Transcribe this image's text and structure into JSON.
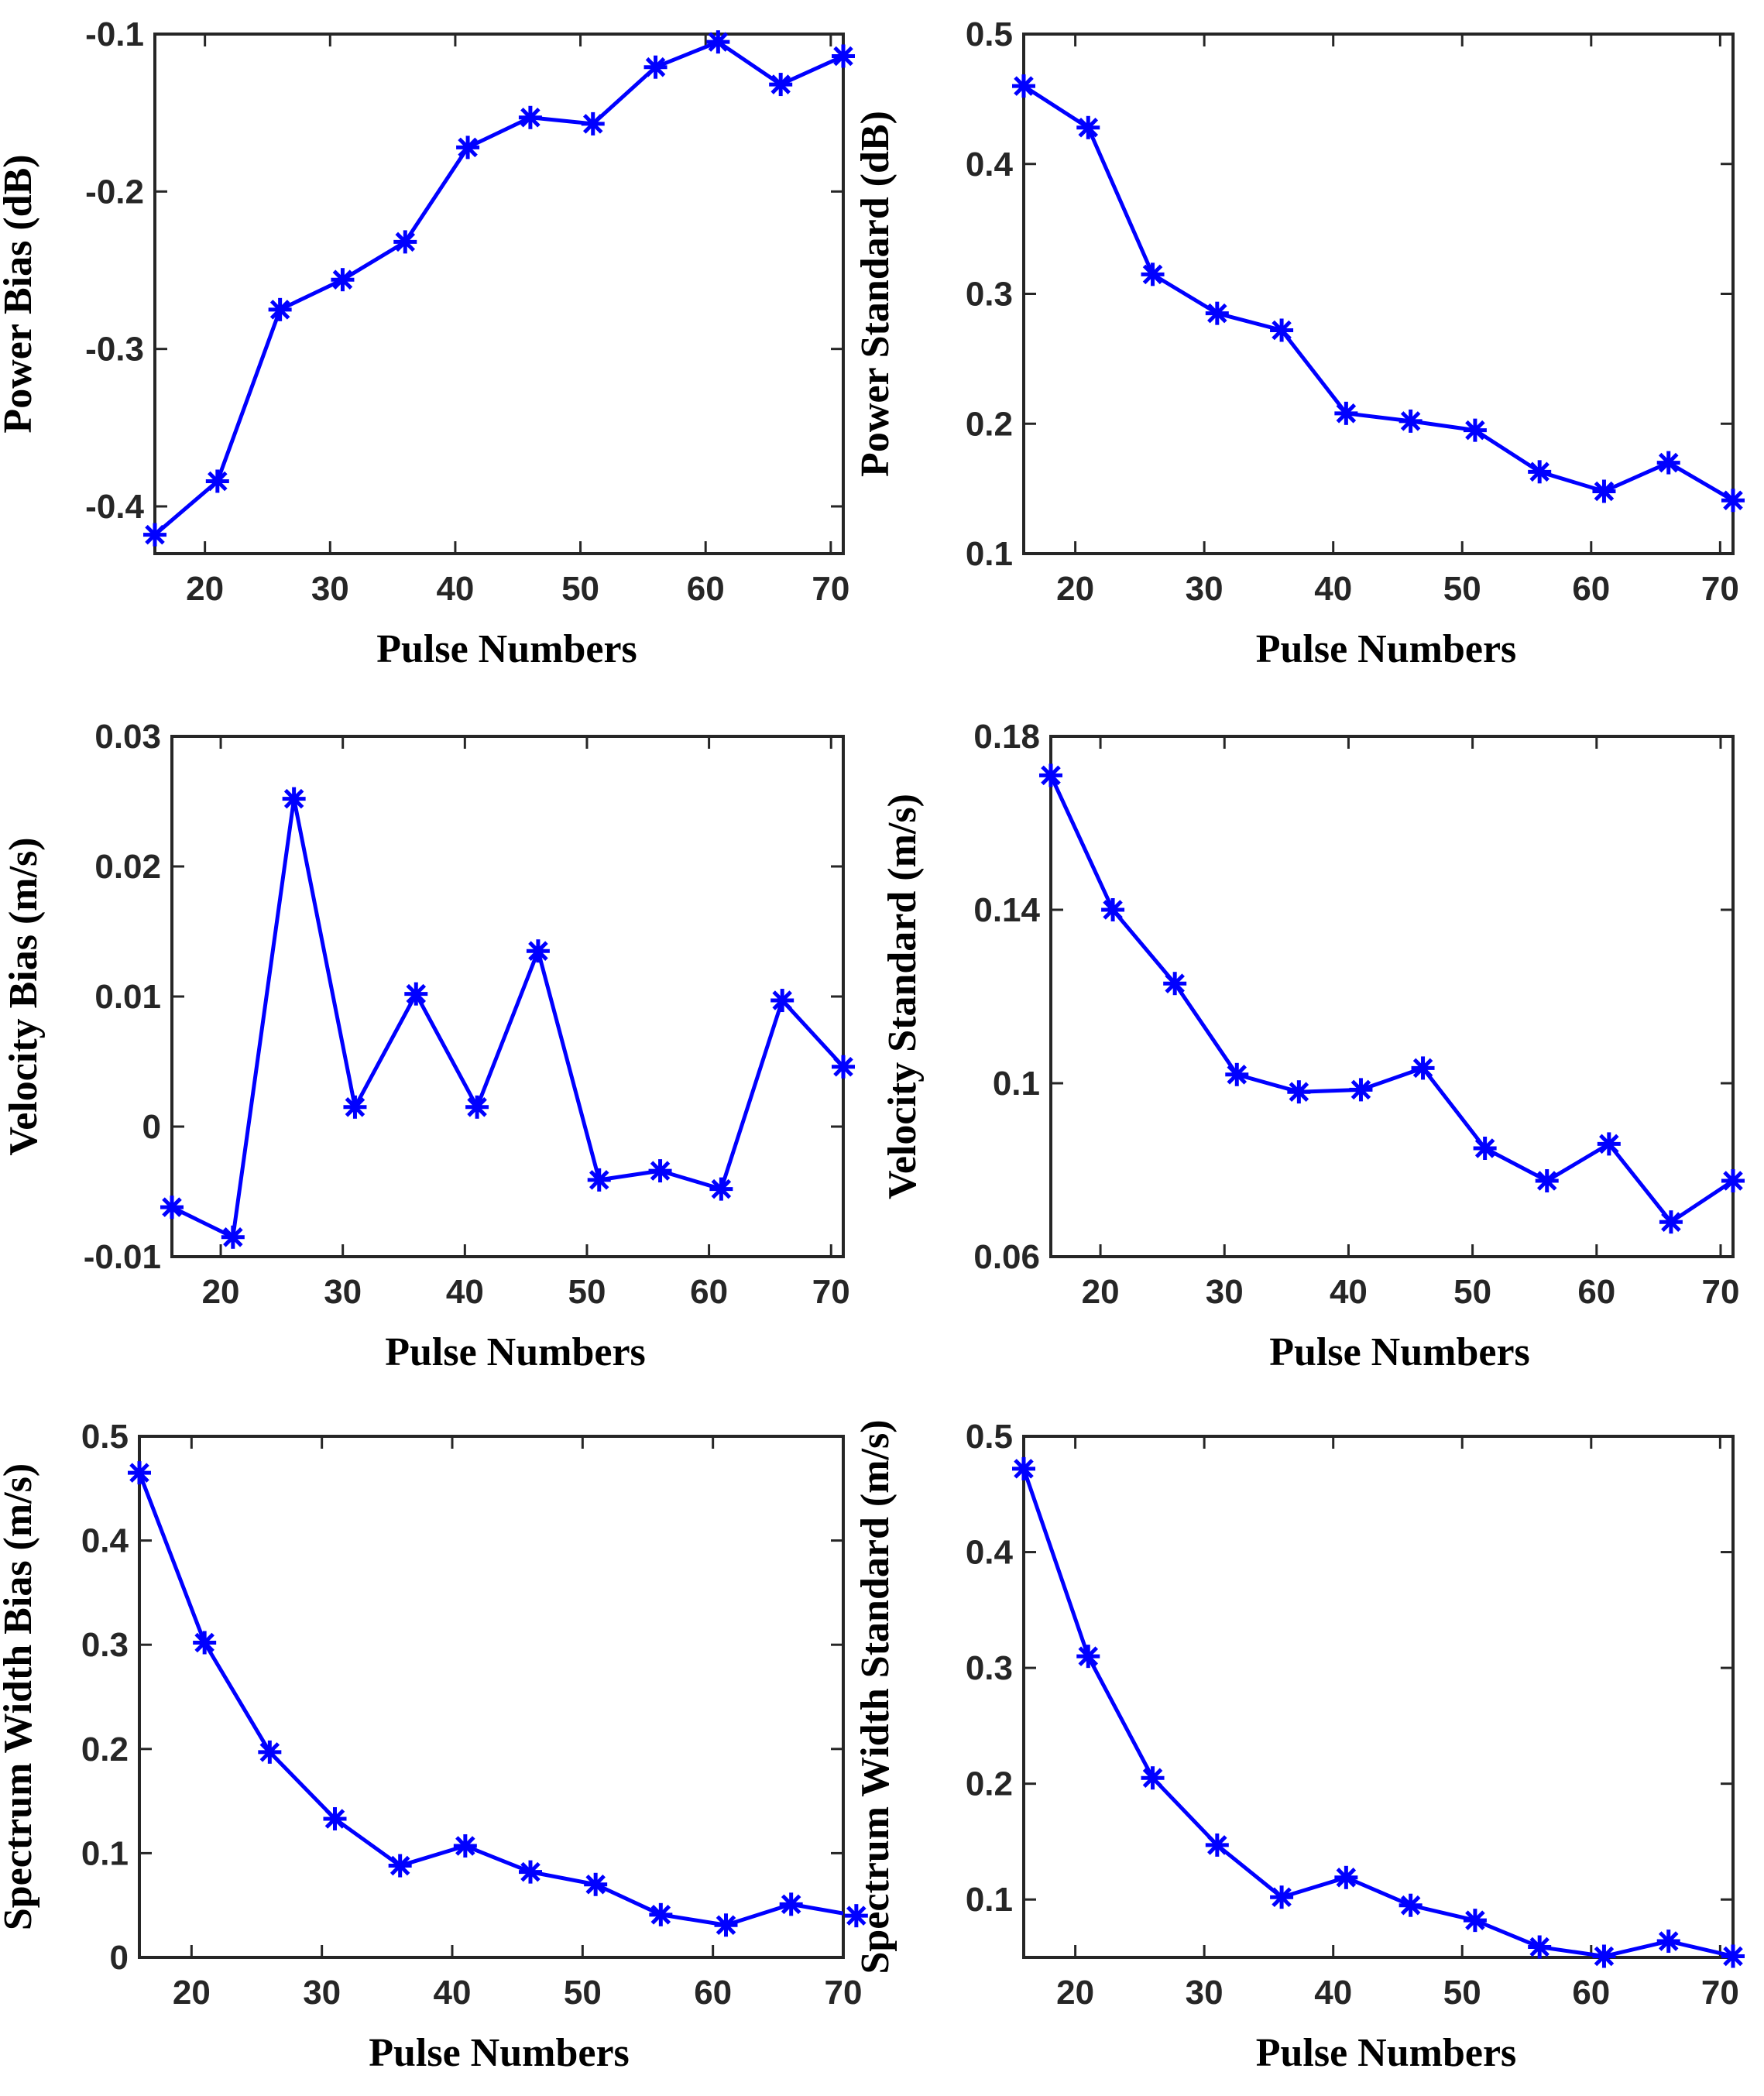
{
  "colors": {
    "series": "#0000FF",
    "axis": "#262626",
    "background": "#FFFFFF"
  },
  "marker_icon": "asterisk-icon",
  "chart_data": [
    {
      "type": "line",
      "title": "",
      "xlabel": "Pulse Numbers",
      "ylabel": "Power Bias (dB)",
      "x": [
        16,
        21,
        26,
        31,
        36,
        41,
        46,
        51,
        56,
        61,
        66,
        71
      ],
      "series": [
        {
          "name": "Power Bias",
          "values": [
            -0.418,
            -0.384,
            -0.275,
            -0.256,
            -0.232,
            -0.172,
            -0.153,
            -0.157,
            -0.121,
            -0.105,
            -0.132,
            -0.114
          ]
        }
      ],
      "xlim": [
        16,
        71
      ],
      "ylim": [
        -0.43,
        -0.1
      ],
      "xticks": [
        20,
        30,
        40,
        50,
        60,
        70
      ],
      "xtick_labels": [
        "20",
        "30",
        "40",
        "50",
        "60",
        "70"
      ],
      "yticks": [
        -0.4,
        -0.3,
        -0.2,
        -0.1
      ],
      "ytick_labels": [
        "-0.4",
        "-0.3",
        "-0.2",
        "-0.1"
      ],
      "grid": false
    },
    {
      "type": "line",
      "title": "",
      "xlabel": "Pulse Numbers",
      "ylabel": "Power Standard (dB)",
      "x": [
        16,
        21,
        26,
        31,
        36,
        41,
        46,
        51,
        56,
        61,
        66,
        71
      ],
      "series": [
        {
          "name": "Power Standard",
          "values": [
            0.46,
            0.428,
            0.315,
            0.285,
            0.272,
            0.208,
            0.202,
            0.195,
            0.163,
            0.148,
            0.17,
            0.141
          ]
        }
      ],
      "xlim": [
        16,
        71
      ],
      "ylim": [
        0.1,
        0.5
      ],
      "xticks": [
        20,
        30,
        40,
        50,
        60,
        70
      ],
      "xtick_labels": [
        "20",
        "30",
        "40",
        "50",
        "60",
        "70"
      ],
      "yticks": [
        0.1,
        0.2,
        0.3,
        0.4,
        0.5
      ],
      "ytick_labels": [
        "0.1",
        "0.2",
        "0.3",
        "0.4",
        "0.5"
      ],
      "grid": false
    },
    {
      "type": "line",
      "title": "",
      "xlabel": "Pulse Numbers",
      "ylabel": "Velocity Bias (m/s)",
      "x": [
        16,
        21,
        26,
        31,
        36,
        41,
        46,
        51,
        56,
        61,
        66,
        71
      ],
      "series": [
        {
          "name": "Velocity Bias",
          "values": [
            -0.0062,
            -0.0085,
            0.0252,
            0.0015,
            0.0102,
            0.0015,
            0.0135,
            -0.0041,
            -0.0034,
            -0.0048,
            0.0097,
            0.0046
          ]
        }
      ],
      "xlim": [
        16,
        71
      ],
      "ylim": [
        -0.01,
        0.03
      ],
      "xticks": [
        20,
        30,
        40,
        50,
        60,
        70
      ],
      "xtick_labels": [
        "20",
        "30",
        "40",
        "50",
        "60",
        "70"
      ],
      "yticks": [
        -0.01,
        0,
        0.01,
        0.02,
        0.03
      ],
      "ytick_labels": [
        "-0.01",
        "0",
        "0.01",
        "0.02",
        "0.03"
      ],
      "grid": false
    },
    {
      "type": "line",
      "title": "",
      "xlabel": "Pulse Numbers",
      "ylabel": "Velocity Standard (m/s)",
      "x": [
        16,
        21,
        26,
        31,
        36,
        41,
        46,
        51,
        56,
        61,
        66,
        71
      ],
      "series": [
        {
          "name": "Velocity Standard",
          "values": [
            0.171,
            0.14,
            0.123,
            0.102,
            0.098,
            0.0985,
            0.1035,
            0.085,
            0.0775,
            0.086,
            0.068,
            0.0775
          ]
        }
      ],
      "xlim": [
        16,
        71
      ],
      "ylim": [
        0.06,
        0.18
      ],
      "xticks": [
        20,
        30,
        40,
        50,
        60,
        70
      ],
      "xtick_labels": [
        "20",
        "30",
        "40",
        "50",
        "60",
        "70"
      ],
      "yticks": [
        0.06,
        0.1,
        0.14,
        0.18
      ],
      "ytick_labels": [
        "0.06",
        "0.1",
        "0.14",
        "0.18"
      ],
      "grid": false
    },
    {
      "type": "line",
      "title": "",
      "xlabel": "Pulse Numbers",
      "ylabel": "Spectrum Width Bias (m/s)",
      "x": [
        16,
        21,
        26,
        31,
        36,
        41,
        46,
        51,
        56,
        61,
        66,
        71
      ],
      "series": [
        {
          "name": "Spectrum Width Bias",
          "values": [
            0.465,
            0.302,
            0.197,
            0.133,
            0.088,
            0.107,
            0.082,
            0.07,
            0.041,
            0.031,
            0.051,
            0.04
          ]
        }
      ],
      "xlim": [
        16,
        70
      ],
      "ylim": [
        0,
        0.5
      ],
      "xticks": [
        20,
        30,
        40,
        50,
        60,
        70
      ],
      "xtick_labels": [
        "20",
        "30",
        "40",
        "50",
        "60",
        "70"
      ],
      "yticks": [
        0,
        0.1,
        0.2,
        0.3,
        0.4,
        0.5
      ],
      "ytick_labels": [
        "0",
        "0.1",
        "0.2",
        "0.3",
        "0.4",
        "0.5"
      ],
      "grid": false
    },
    {
      "type": "line",
      "title": "",
      "xlabel": "Pulse Numbers",
      "ylabel": "Spectrum Width Standard (m/s)",
      "x": [
        16,
        21,
        26,
        31,
        36,
        41,
        46,
        51,
        56,
        61,
        66,
        71
      ],
      "series": [
        {
          "name": "Spectrum Width Standard",
          "values": [
            0.472,
            0.31,
            0.205,
            0.147,
            0.102,
            0.119,
            0.095,
            0.082,
            0.059,
            0.051,
            0.064,
            0.051
          ]
        }
      ],
      "xlim": [
        16,
        71
      ],
      "ylim": [
        0.05,
        0.5
      ],
      "xticks": [
        20,
        30,
        40,
        50,
        60,
        70
      ],
      "xtick_labels": [
        "20",
        "30",
        "40",
        "50",
        "60",
        "70"
      ],
      "yticks": [
        0.1,
        0.2,
        0.3,
        0.4,
        0.5
      ],
      "ytick_labels": [
        "0.1",
        "0.2",
        "0.3",
        "0.4",
        "0.5"
      ],
      "grid": false
    }
  ]
}
